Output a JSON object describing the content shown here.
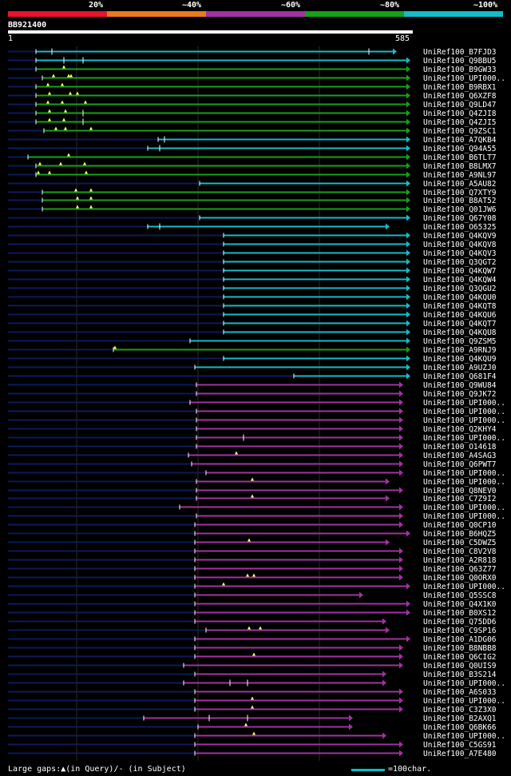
{
  "colors": {
    "red": "#e8142a",
    "orange": "#e87c1c",
    "purple": "#a033a0",
    "green": "#17a017",
    "cyan": "#14bcc8",
    "ghost": "#0c1a5a"
  },
  "legend": [
    {
      "label": "20%",
      "color": "#e8142a"
    },
    {
      "label": "~40%",
      "color": "#e87c1c"
    },
    {
      "label": "~60%",
      "color": "#a033a0"
    },
    {
      "label": "~80%",
      "color": "#17a017"
    },
    {
      "label": "~100%",
      "color": "#14bcc8"
    }
  ],
  "query": {
    "name": "BB921400",
    "start": "1",
    "end": "585",
    "length": 585
  },
  "footer": {
    "gaps_note": "Large gaps:▲(in Query)/- (in Subject)",
    "scale_note": "=100char."
  },
  "hits": [
    {
      "id": "UniRef100_B7FJD3",
      "s": 45,
      "e": 497,
      "c": "cyan",
      "head": "tri",
      "gaps": [
        {
          "x": 65,
          "t": "tick"
        },
        {
          "x": 462,
          "t": "tick"
        }
      ]
    },
    {
      "id": "UniRef100_Q9BBU5",
      "s": 45,
      "e": 514,
      "c": "cyan",
      "head": "tri",
      "gaps": [
        {
          "x": 80,
          "t": "tick"
        },
        {
          "x": 104,
          "t": "tick"
        }
      ]
    },
    {
      "id": "UniRef100_B9GW33",
      "s": 45,
      "e": 514,
      "c": "green",
      "head": "tri",
      "gaps": [
        {
          "x": 80,
          "t": "tri"
        }
      ]
    },
    {
      "id": "UniRef100_UPI000..",
      "s": 53,
      "e": 514,
      "c": "green",
      "head": "tri",
      "gaps": [
        {
          "x": 67,
          "t": "tri"
        },
        {
          "x": 86,
          "t": "tri"
        },
        {
          "x": 89,
          "t": "tri"
        }
      ]
    },
    {
      "id": "UniRef100_B9RBX1",
      "s": 45,
      "e": 514,
      "c": "green",
      "head": "tri",
      "gaps": [
        {
          "x": 60,
          "t": "tri"
        },
        {
          "x": 78,
          "t": "tri"
        }
      ]
    },
    {
      "id": "UniRef100_Q6XZF8",
      "s": 45,
      "e": 514,
      "c": "green",
      "head": "tri",
      "gaps": [
        {
          "x": 62,
          "t": "tri"
        },
        {
          "x": 88,
          "t": "tri"
        },
        {
          "x": 97,
          "t": "tri"
        }
      ]
    },
    {
      "id": "UniRef100_Q9LD47",
      "s": 45,
      "e": 514,
      "c": "green",
      "head": "tri",
      "gaps": [
        {
          "x": 60,
          "t": "tri"
        },
        {
          "x": 78,
          "t": "tri"
        },
        {
          "x": 107,
          "t": "tri"
        }
      ]
    },
    {
      "id": "UniRef100_Q4ZJI8",
      "s": 45,
      "e": 514,
      "c": "green",
      "head": "tri",
      "gaps": [
        {
          "x": 62,
          "t": "tri"
        },
        {
          "x": 82,
          "t": "tri"
        },
        {
          "x": 104,
          "t": "tick"
        }
      ]
    },
    {
      "id": "UniRef100_Q4ZJI5",
      "s": 45,
      "e": 514,
      "c": "green",
      "head": "tri",
      "gaps": [
        {
          "x": 62,
          "t": "tri"
        },
        {
          "x": 80,
          "t": "tri"
        },
        {
          "x": 104,
          "t": "tick"
        }
      ]
    },
    {
      "id": "UniRef100_Q9ZSC1",
      "s": 55,
      "e": 514,
      "c": "green",
      "head": "tri",
      "gaps": [
        {
          "x": 70,
          "t": "tri"
        },
        {
          "x": 82,
          "t": "tri"
        },
        {
          "x": 114,
          "t": "tri"
        }
      ]
    },
    {
      "id": "UniRef100_A7QKB4",
      "s": 198,
      "e": 514,
      "c": "cyan",
      "head": "tri",
      "gaps": [
        {
          "x": 206,
          "t": "tick"
        }
      ]
    },
    {
      "id": "UniRef100_Q94A55",
      "s": 185,
      "e": 514,
      "c": "cyan",
      "head": "tri",
      "gaps": [
        {
          "x": 200,
          "t": "tick"
        }
      ]
    },
    {
      "id": "UniRef100_B6TLT7",
      "s": 35,
      "e": 514,
      "c": "green",
      "head": "tri",
      "gaps": [
        {
          "x": 86,
          "t": "tri"
        }
      ]
    },
    {
      "id": "UniRef100_B8LMX7",
      "s": 45,
      "e": 514,
      "c": "green",
      "head": "tri",
      "gaps": [
        {
          "x": 50,
          "t": "tri"
        },
        {
          "x": 76,
          "t": "tri"
        },
        {
          "x": 106,
          "t": "tri"
        }
      ]
    },
    {
      "id": "UniRef100_A9NL97",
      "s": 45,
      "e": 514,
      "c": "green",
      "head": "tri",
      "gaps": [
        {
          "x": 48,
          "t": "tri"
        },
        {
          "x": 62,
          "t": "tri"
        },
        {
          "x": 108,
          "t": "tri"
        }
      ]
    },
    {
      "id": "UniRef100_A5AU82",
      "s": 250,
      "e": 514,
      "c": "cyan",
      "head": "tri",
      "gaps": []
    },
    {
      "id": "UniRef100_Q7XTY9",
      "s": 53,
      "e": 514,
      "c": "green",
      "head": "tri",
      "gaps": [
        {
          "x": 95,
          "t": "tri"
        },
        {
          "x": 114,
          "t": "tri"
        }
      ]
    },
    {
      "id": "UniRef100_B8AT52",
      "s": 53,
      "e": 514,
      "c": "green",
      "head": "tri",
      "gaps": [
        {
          "x": 97,
          "t": "tri"
        },
        {
          "x": 114,
          "t": "tri"
        }
      ]
    },
    {
      "id": "UniRef100_Q01JW6",
      "s": 53,
      "e": 514,
      "c": "green",
      "head": "tri",
      "gaps": [
        {
          "x": 97,
          "t": "tri"
        },
        {
          "x": 114,
          "t": "tri"
        }
      ]
    },
    {
      "id": "UniRef100_Q67Y08",
      "s": 250,
      "e": 514,
      "c": "cyan",
      "head": "tri",
      "gaps": []
    },
    {
      "id": "UniRef100_O65325",
      "s": 185,
      "e": 488,
      "c": "cyan",
      "head": "tri",
      "gaps": [
        {
          "x": 200,
          "t": "tick"
        }
      ]
    },
    {
      "id": "UniRef100_Q4KQV9",
      "s": 280,
      "e": 514,
      "c": "cyan",
      "head": "tri",
      "gaps": []
    },
    {
      "id": "UniRef100_Q4KQV8",
      "s": 280,
      "e": 514,
      "c": "cyan",
      "head": "tri",
      "gaps": []
    },
    {
      "id": "UniRef100_Q4KQV3",
      "s": 280,
      "e": 514,
      "c": "cyan",
      "head": "tri",
      "gaps": []
    },
    {
      "id": "UniRef100_Q3QGT2",
      "s": 280,
      "e": 514,
      "c": "cyan",
      "head": "tri",
      "gaps": []
    },
    {
      "id": "UniRef100_Q4KQW7",
      "s": 280,
      "e": 514,
      "c": "cyan",
      "head": "tri",
      "gaps": []
    },
    {
      "id": "UniRef100_Q4KQW4",
      "s": 280,
      "e": 514,
      "c": "cyan",
      "head": "tri",
      "gaps": []
    },
    {
      "id": "UniRef100_Q3QGU2",
      "s": 280,
      "e": 514,
      "c": "cyan",
      "head": "tri",
      "gaps": []
    },
    {
      "id": "UniRef100_Q4KQU0",
      "s": 280,
      "e": 514,
      "c": "cyan",
      "head": "tri",
      "gaps": []
    },
    {
      "id": "UniRef100_Q4KQT8",
      "s": 280,
      "e": 514,
      "c": "cyan",
      "head": "tri",
      "gaps": []
    },
    {
      "id": "UniRef100_Q4KQU6",
      "s": 280,
      "e": 514,
      "c": "cyan",
      "head": "tri",
      "gaps": []
    },
    {
      "id": "UniRef100_Q4KQT7",
      "s": 280,
      "e": 514,
      "c": "cyan",
      "head": "tri",
      "gaps": []
    },
    {
      "id": "UniRef100_Q4KQU8",
      "s": 280,
      "e": 514,
      "c": "cyan",
      "head": "tri",
      "gaps": []
    },
    {
      "id": "UniRef100_Q9ZSM5",
      "s": 238,
      "e": 514,
      "c": "cyan",
      "head": "tri",
      "gaps": []
    },
    {
      "id": "UniRef100_A9RNJ9",
      "s": 142,
      "e": 514,
      "c": "green",
      "head": "tri",
      "gaps": [
        {
          "x": 144,
          "t": "tri"
        }
      ]
    },
    {
      "id": "UniRef100_Q4KQU9",
      "s": 280,
      "e": 514,
      "c": "cyan",
      "head": "tri",
      "gaps": []
    },
    {
      "id": "UniRef100_A9UZJ0",
      "s": 244,
      "e": 514,
      "c": "cyan",
      "head": "tri",
      "gaps": []
    },
    {
      "id": "UniRef100_Q681F4",
      "s": 368,
      "e": 514,
      "c": "cyan",
      "head": "tri",
      "gaps": []
    },
    {
      "id": "UniRef100_Q9WU84",
      "s": 246,
      "e": 505,
      "c": "purple",
      "head": "tri",
      "gaps": []
    },
    {
      "id": "UniRef100_Q9JK72",
      "s": 246,
      "e": 505,
      "c": "purple",
      "head": "tri",
      "gaps": []
    },
    {
      "id": "UniRef100_UPI000..",
      "s": 238,
      "e": 505,
      "c": "purple",
      "head": "tri",
      "gaps": []
    },
    {
      "id": "UniRef100_UPI000..",
      "s": 246,
      "e": 505,
      "c": "purple",
      "head": "tri",
      "gaps": []
    },
    {
      "id": "UniRef100_UPI000..",
      "s": 246,
      "e": 505,
      "c": "purple",
      "head": "tri",
      "gaps": []
    },
    {
      "id": "UniRef100_Q2KHY4",
      "s": 246,
      "e": 505,
      "c": "purple",
      "head": "tri",
      "gaps": []
    },
    {
      "id": "UniRef100_UPI000..",
      "s": 246,
      "e": 505,
      "c": "purple",
      "head": "tri",
      "gaps": [
        {
          "x": 305,
          "t": "tick"
        }
      ]
    },
    {
      "id": "UniRef100_O14618",
      "s": 246,
      "e": 505,
      "c": "purple",
      "head": "tri",
      "gaps": []
    },
    {
      "id": "UniRef100_A4SAG3",
      "s": 236,
      "e": 505,
      "c": "purple",
      "head": "tri",
      "gaps": [
        {
          "x": 296,
          "t": "tri"
        }
      ]
    },
    {
      "id": "UniRef100_Q6PWT7",
      "s": 240,
      "e": 505,
      "c": "purple",
      "head": "tri",
      "gaps": []
    },
    {
      "id": "UniRef100_UPI000..",
      "s": 258,
      "e": 505,
      "c": "purple",
      "head": "tri",
      "gaps": []
    },
    {
      "id": "UniRef100_UPI000..",
      "s": 246,
      "e": 488,
      "c": "purple",
      "head": "tri",
      "gaps": [
        {
          "x": 316,
          "t": "tri"
        }
      ]
    },
    {
      "id": "UniRef100_Q8NEV0",
      "s": 246,
      "e": 505,
      "c": "purple",
      "head": "tri",
      "gaps": []
    },
    {
      "id": "UniRef100_C7Z9I2",
      "s": 246,
      "e": 488,
      "c": "purple",
      "head": "tri",
      "gaps": [
        {
          "x": 316,
          "t": "tri"
        }
      ]
    },
    {
      "id": "UniRef100_UPI000..",
      "s": 225,
      "e": 505,
      "c": "purple",
      "head": "tri",
      "gaps": []
    },
    {
      "id": "UniRef100_UPI000..",
      "s": 246,
      "e": 505,
      "c": "purple",
      "head": "tri",
      "gaps": []
    },
    {
      "id": "UniRef100_Q0CP10",
      "s": 244,
      "e": 505,
      "c": "purple",
      "head": "tri",
      "gaps": []
    },
    {
      "id": "UniRef100_B6HQZ5",
      "s": 244,
      "e": 514,
      "c": "purple",
      "head": "tri",
      "gaps": []
    },
    {
      "id": "UniRef100_C5DWZ5",
      "s": 244,
      "e": 488,
      "c": "purple",
      "head": "tri",
      "gaps": [
        {
          "x": 312,
          "t": "tri"
        }
      ]
    },
    {
      "id": "UniRef100_C8V2V8",
      "s": 244,
      "e": 505,
      "c": "purple",
      "head": "tri",
      "gaps": []
    },
    {
      "id": "UniRef100_A2R818",
      "s": 244,
      "e": 505,
      "c": "purple",
      "head": "tri",
      "gaps": []
    },
    {
      "id": "UniRef100_Q63Z77",
      "s": 244,
      "e": 505,
      "c": "purple",
      "head": "tri",
      "gaps": []
    },
    {
      "id": "UniRef100_Q0ORX0",
      "s": 244,
      "e": 505,
      "c": "purple",
      "head": "tri",
      "gaps": [
        {
          "x": 310,
          "t": "tri"
        },
        {
          "x": 318,
          "t": "tri"
        }
      ]
    },
    {
      "id": "UniRef100_UPI000..",
      "s": 244,
      "e": 514,
      "c": "purple",
      "head": "tri",
      "gaps": [
        {
          "x": 280,
          "t": "tri"
        }
      ]
    },
    {
      "id": "UniRef100_Q5SSC8",
      "s": 244,
      "e": 455,
      "c": "purple",
      "head": "tri",
      "gaps": []
    },
    {
      "id": "UniRef100_Q4X1K0",
      "s": 244,
      "e": 514,
      "c": "purple",
      "head": "tri",
      "gaps": []
    },
    {
      "id": "UniRef100_B0XS12",
      "s": 244,
      "e": 514,
      "c": "purple",
      "head": "tri",
      "gaps": []
    },
    {
      "id": "UniRef100_Q75DD6",
      "s": 244,
      "e": 484,
      "c": "purple",
      "head": "tri",
      "gaps": []
    },
    {
      "id": "UniRef100_C9SP16",
      "s": 258,
      "e": 488,
      "c": "purple",
      "head": "tri",
      "gaps": [
        {
          "x": 312,
          "t": "tri"
        },
        {
          "x": 326,
          "t": "tri"
        }
      ]
    },
    {
      "id": "UniRef100_A1DG06",
      "s": 244,
      "e": 514,
      "c": "purple",
      "head": "tri",
      "gaps": []
    },
    {
      "id": "UniRef100_B8NBB8",
      "s": 244,
      "e": 505,
      "c": "purple",
      "head": "tri",
      "gaps": []
    },
    {
      "id": "UniRef100_Q6CIG2",
      "s": 244,
      "e": 505,
      "c": "purple",
      "head": "tri",
      "gaps": [
        {
          "x": 318,
          "t": "tri"
        }
      ]
    },
    {
      "id": "UniRef100_Q0UIS9",
      "s": 230,
      "e": 505,
      "c": "purple",
      "head": "tri",
      "gaps": []
    },
    {
      "id": "UniRef100_B3S214",
      "s": 244,
      "e": 484,
      "c": "purple",
      "head": "tri",
      "gaps": []
    },
    {
      "id": "UniRef100_UPI000..",
      "s": 230,
      "e": 484,
      "c": "purple",
      "head": "tri",
      "gaps": [
        {
          "x": 288,
          "t": "tick"
        },
        {
          "x": 310,
          "t": "tick"
        }
      ]
    },
    {
      "id": "UniRef100_A6S033",
      "s": 244,
      "e": 505,
      "c": "purple",
      "head": "tri",
      "gaps": []
    },
    {
      "id": "UniRef100_UPI000..",
      "s": 244,
      "e": 505,
      "c": "purple",
      "head": "tri",
      "gaps": [
        {
          "x": 316,
          "t": "tri"
        }
      ]
    },
    {
      "id": "UniRef100_C3Z3X0",
      "s": 244,
      "e": 505,
      "c": "purple",
      "head": "tri",
      "gaps": [
        {
          "x": 316,
          "t": "tri"
        }
      ]
    },
    {
      "id": "UniRef100_B2AXQ1",
      "s": 180,
      "e": 442,
      "c": "purple",
      "head": "tri",
      "gaps": [
        {
          "x": 262,
          "t": "tick"
        },
        {
          "x": 310,
          "t": "tick"
        }
      ]
    },
    {
      "id": "UniRef100_Q6BK66",
      "s": 248,
      "e": 442,
      "c": "purple",
      "head": "tri",
      "gaps": [
        {
          "x": 308,
          "t": "tri"
        }
      ]
    },
    {
      "id": "UniRef100_UPI000..",
      "s": 244,
      "e": 484,
      "c": "purple",
      "head": "tri",
      "gaps": [
        {
          "x": 318,
          "t": "tri"
        }
      ]
    },
    {
      "id": "UniRef100_C5GS91",
      "s": 244,
      "e": 505,
      "c": "purple",
      "head": "tri",
      "gaps": []
    },
    {
      "id": "UniRef100_A7E480",
      "s": 244,
      "e": 505,
      "c": "purple",
      "head": "tri",
      "gaps": []
    }
  ]
}
